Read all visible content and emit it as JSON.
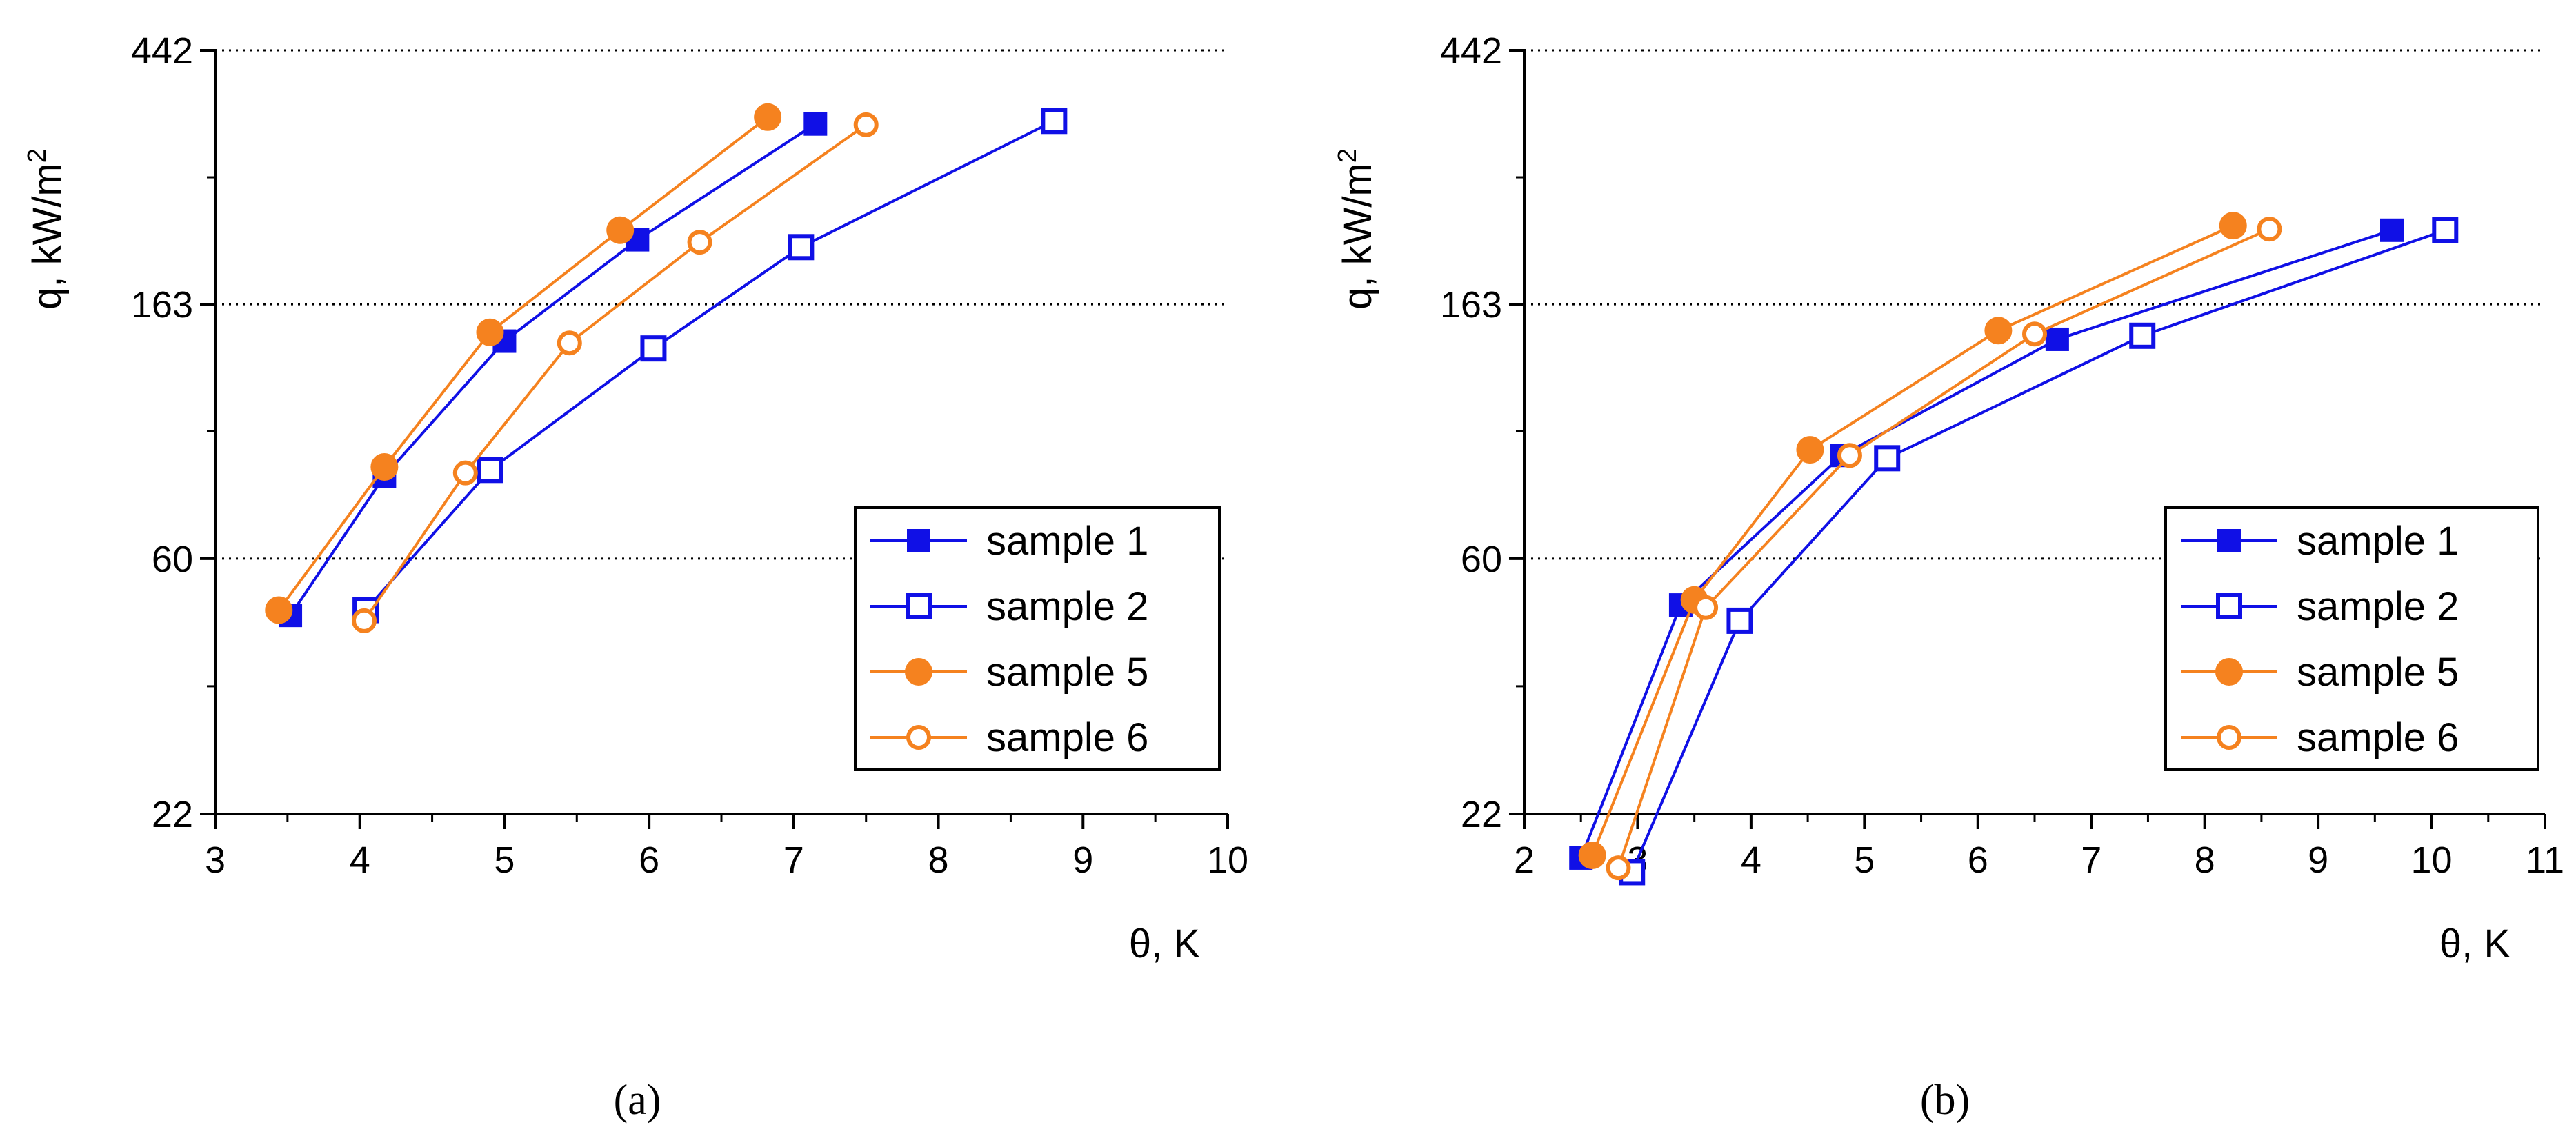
{
  "colors": {
    "blue": "#1010e6",
    "orange": "#f5821f",
    "axis": "#000000",
    "grid": "#000000"
  },
  "chart_data": [
    {
      "type": "line",
      "panel_label": "(a)",
      "xlabel": "θ, K",
      "ylabel": "q, kW/m",
      "ylabel_superscript": "2",
      "xlim": [
        3,
        10
      ],
      "ylim": [
        22,
        442
      ],
      "yscale": "log",
      "xticks": [
        3,
        4,
        5,
        6,
        7,
        8,
        9,
        10
      ],
      "yticks": [
        22,
        60,
        163,
        442
      ],
      "ygrid": [
        60,
        163,
        442
      ],
      "legend_position": "bottom-right",
      "series": [
        {
          "name": "sample 1",
          "color": "#1010e6",
          "marker": "square",
          "filled": true,
          "x": [
            3.52,
            4.17,
            5.0,
            5.92,
            7.15
          ],
          "y": [
            48,
            83,
            141,
            210,
            331
          ]
        },
        {
          "name": "sample 2",
          "color": "#1010e6",
          "marker": "square",
          "filled": false,
          "x": [
            4.04,
            4.9,
            6.03,
            7.05,
            8.8
          ],
          "y": [
            49,
            85,
            137,
            204,
            335
          ]
        },
        {
          "name": "sample 5",
          "color": "#f5821f",
          "marker": "circle",
          "filled": true,
          "x": [
            3.44,
            4.17,
            4.9,
            5.8,
            6.82
          ],
          "y": [
            49,
            86,
            146,
            218,
            340
          ]
        },
        {
          "name": "sample 6",
          "color": "#f5821f",
          "marker": "circle",
          "filled": false,
          "x": [
            4.03,
            4.73,
            5.45,
            6.35,
            7.5
          ],
          "y": [
            47,
            84,
            140,
            208,
            330
          ]
        }
      ]
    },
    {
      "type": "line",
      "panel_label": "(b)",
      "xlabel": "θ, K",
      "ylabel": "q, kW/m",
      "ylabel_superscript": "2",
      "xlim": [
        2,
        11
      ],
      "ylim": [
        22,
        442
      ],
      "yscale": "log",
      "xticks": [
        2,
        3,
        4,
        5,
        6,
        7,
        8,
        9,
        10,
        11
      ],
      "yticks": [
        22,
        60,
        163,
        442
      ],
      "ygrid": [
        22,
        60,
        163,
        442
      ],
      "legend_position": "bottom-right",
      "series": [
        {
          "name": "sample 1",
          "color": "#1010e6",
          "marker": "square",
          "filled": true,
          "x": [
            2.5,
            3.38,
            4.8,
            6.7,
            9.65
          ],
          "y": [
            18.5,
            50,
            90,
            142,
            218
          ]
        },
        {
          "name": "sample 2",
          "color": "#1010e6",
          "marker": "square",
          "filled": false,
          "x": [
            2.95,
            3.9,
            5.2,
            7.45,
            10.12
          ],
          "y": [
            17.5,
            47,
            89,
            144,
            218
          ]
        },
        {
          "name": "sample 5",
          "color": "#f5821f",
          "marker": "circle",
          "filled": true,
          "x": [
            2.6,
            3.5,
            4.52,
            6.18,
            8.25
          ],
          "y": [
            18.7,
            51,
            92,
            147,
            222
          ]
        },
        {
          "name": "sample 6",
          "color": "#f5821f",
          "marker": "circle",
          "filled": false,
          "x": [
            2.83,
            3.6,
            4.87,
            6.5,
            8.57
          ],
          "y": [
            17.8,
            49.5,
            90,
            145,
            219
          ]
        }
      ]
    }
  ]
}
